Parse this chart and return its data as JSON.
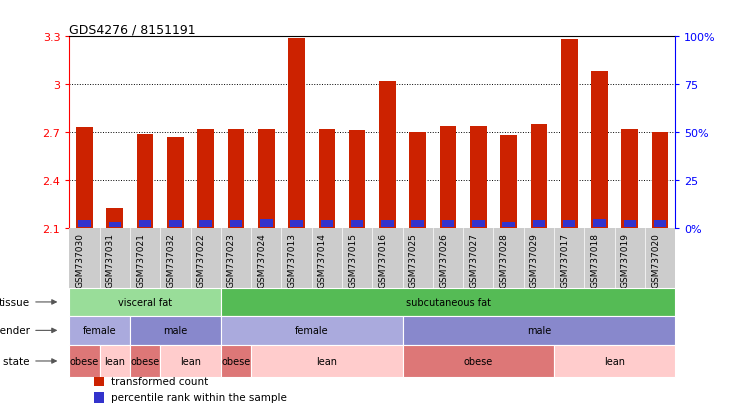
{
  "title": "GDS4276 / 8151191",
  "samples": [
    "GSM737030",
    "GSM737031",
    "GSM737021",
    "GSM737032",
    "GSM737022",
    "GSM737023",
    "GSM737024",
    "GSM737013",
    "GSM737014",
    "GSM737015",
    "GSM737016",
    "GSM737025",
    "GSM737026",
    "GSM737027",
    "GSM737028",
    "GSM737029",
    "GSM737017",
    "GSM737018",
    "GSM737019",
    "GSM737020"
  ],
  "red_values": [
    2.73,
    2.22,
    2.69,
    2.67,
    2.72,
    2.72,
    2.72,
    3.29,
    2.72,
    2.71,
    3.02,
    2.7,
    2.74,
    2.74,
    2.68,
    2.75,
    3.28,
    3.08,
    2.72,
    2.7
  ],
  "blue_values": [
    0.04,
    0.03,
    0.04,
    0.04,
    0.04,
    0.04,
    0.05,
    0.04,
    0.04,
    0.04,
    0.04,
    0.04,
    0.04,
    0.04,
    0.03,
    0.04,
    0.04,
    0.05,
    0.04,
    0.04
  ],
  "ymin": 2.1,
  "ymax": 3.3,
  "yticks": [
    2.1,
    2.4,
    2.7,
    3.0,
    3.3
  ],
  "ytick_labels": [
    "2.1",
    "2.4",
    "2.7",
    "3",
    "3.3"
  ],
  "y2ticks_pct": [
    0,
    25,
    50,
    75,
    100
  ],
  "y2tick_labels": [
    "0%",
    "25",
    "50%",
    "75",
    "100%"
  ],
  "bar_color_red": "#cc2200",
  "bar_color_blue": "#3333cc",
  "tissue_groups": [
    {
      "label": "visceral fat",
      "start": 0,
      "end": 5,
      "color": "#99dd99"
    },
    {
      "label": "subcutaneous fat",
      "start": 5,
      "end": 20,
      "color": "#55bb55"
    }
  ],
  "gender_groups": [
    {
      "label": "female",
      "start": 0,
      "end": 2,
      "color": "#aaaadd"
    },
    {
      "label": "male",
      "start": 2,
      "end": 5,
      "color": "#8888cc"
    },
    {
      "label": "female",
      "start": 5,
      "end": 11,
      "color": "#aaaadd"
    },
    {
      "label": "male",
      "start": 11,
      "end": 20,
      "color": "#8888cc"
    }
  ],
  "disease_groups": [
    {
      "label": "obese",
      "start": 0,
      "end": 1,
      "color": "#dd7777"
    },
    {
      "label": "lean",
      "start": 1,
      "end": 2,
      "color": "#ffcccc"
    },
    {
      "label": "obese",
      "start": 2,
      "end": 3,
      "color": "#dd7777"
    },
    {
      "label": "lean",
      "start": 3,
      "end": 5,
      "color": "#ffcccc"
    },
    {
      "label": "obese",
      "start": 5,
      "end": 6,
      "color": "#dd7777"
    },
    {
      "label": "lean",
      "start": 6,
      "end": 11,
      "color": "#ffcccc"
    },
    {
      "label": "obese",
      "start": 11,
      "end": 16,
      "color": "#dd7777"
    },
    {
      "label": "lean",
      "start": 16,
      "end": 20,
      "color": "#ffcccc"
    }
  ],
  "legend_items": [
    {
      "label": "transformed count",
      "color": "#cc2200"
    },
    {
      "label": "percentile rank within the sample",
      "color": "#3333cc"
    }
  ],
  "xtick_bg_color": "#cccccc",
  "grid_color": "black",
  "grid_linestyle": "dotted"
}
